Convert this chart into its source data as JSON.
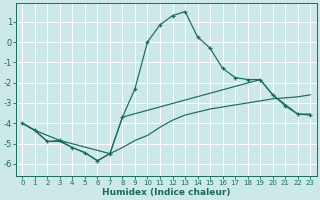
{
  "xlabel": "Humidex (Indice chaleur)",
  "background_color": "#cce8e8",
  "grid_color": "#b0d4d4",
  "line_color": "#1a6b5a",
  "xlim": [
    -0.5,
    23.5
  ],
  "ylim": [
    -6.6,
    1.9
  ],
  "yticks": [
    1,
    0,
    -1,
    -2,
    -3,
    -4,
    -5,
    -6
  ],
  "xticks": [
    0,
    1,
    2,
    3,
    4,
    5,
    6,
    7,
    8,
    9,
    10,
    11,
    12,
    13,
    14,
    15,
    16,
    17,
    18,
    19,
    20,
    21,
    22,
    23
  ],
  "line1_x": [
    0,
    1,
    2,
    3,
    4,
    5,
    6,
    7,
    8,
    9,
    10,
    11,
    12,
    13,
    14,
    15,
    16,
    17,
    18,
    19,
    20,
    21,
    22,
    23
  ],
  "line1_y": [
    -4.0,
    -4.35,
    -4.9,
    -4.9,
    -5.2,
    -5.45,
    -5.85,
    -5.5,
    -5.2,
    -4.85,
    -4.6,
    -4.2,
    -3.85,
    -3.6,
    -3.45,
    -3.3,
    -3.2,
    -3.1,
    -3.0,
    -2.9,
    -2.8,
    -2.75,
    -2.7,
    -2.6
  ],
  "line2_x": [
    0,
    1,
    2,
    3,
    4,
    5,
    6,
    7,
    8,
    9,
    10,
    11,
    12,
    13,
    14,
    15,
    16,
    17,
    18,
    19,
    20,
    21,
    22,
    23
  ],
  "line2_y": [
    -4.0,
    -4.35,
    -4.9,
    -4.85,
    -5.2,
    -5.45,
    -5.85,
    -5.5,
    -3.7,
    -2.3,
    0.0,
    0.85,
    1.3,
    1.5,
    0.25,
    -0.3,
    -1.3,
    -1.75,
    -1.85,
    -1.85,
    -2.6,
    -3.15,
    -3.55,
    -3.6
  ],
  "line3_x": [
    0,
    1,
    3,
    7,
    8,
    19,
    20,
    22,
    23
  ],
  "line3_y": [
    -4.0,
    -4.35,
    -4.85,
    -5.5,
    -3.7,
    -1.85,
    -2.6,
    -3.55,
    -3.55
  ]
}
